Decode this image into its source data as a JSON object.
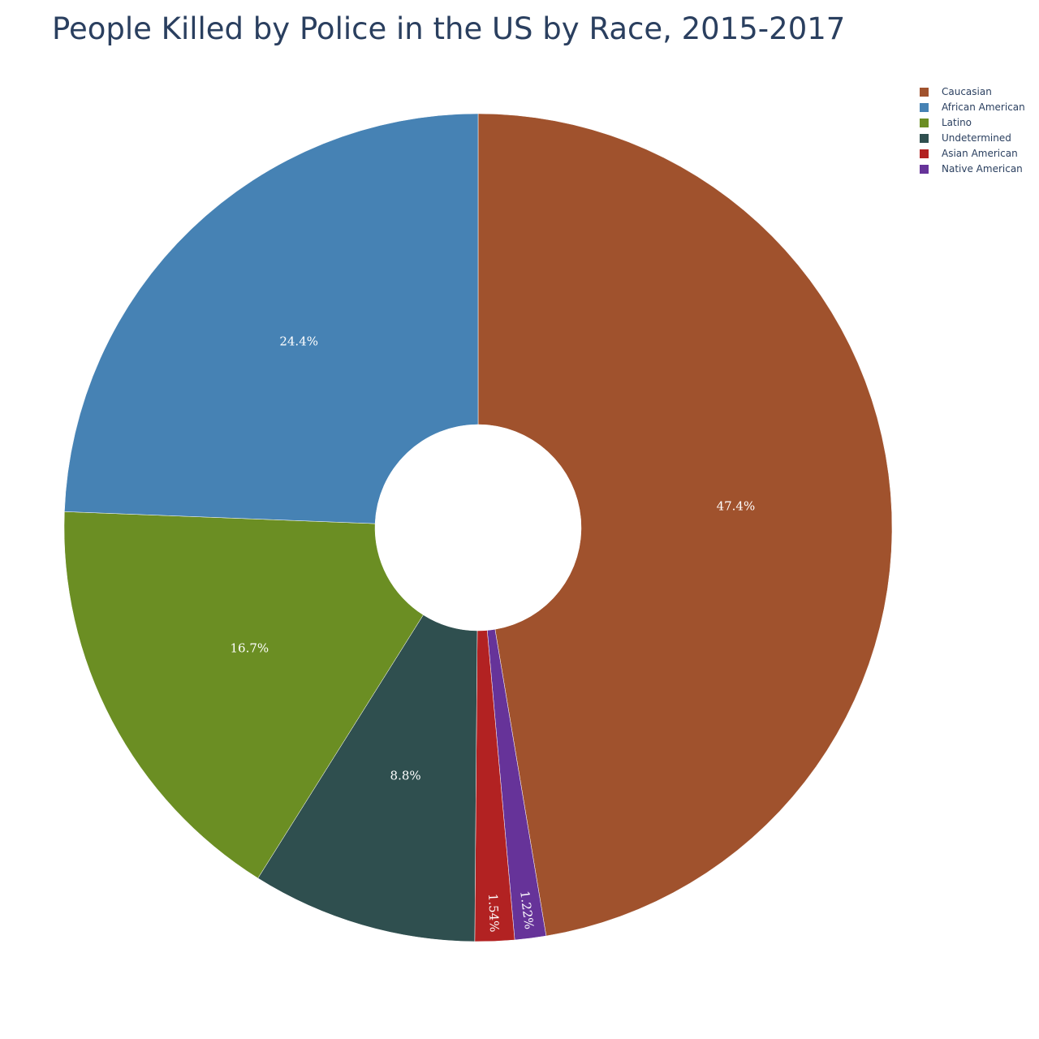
{
  "chart_data": {
    "type": "pie",
    "title": "People Killed by Police in the US by Race, 2015-2017",
    "hole": true,
    "legend_position": "top-right",
    "direction": "clockwise",
    "slices": [
      {
        "name": "Caucasian",
        "percent": 47.4,
        "label": "47.4%",
        "color": "#a0522d"
      },
      {
        "name": "Native American",
        "percent": 1.22,
        "label": "1.22%",
        "color": "#663399"
      },
      {
        "name": "Asian American",
        "percent": 1.54,
        "label": "1.54%",
        "color": "#b22222"
      },
      {
        "name": "Undetermined",
        "percent": 8.8,
        "label": "8.8%",
        "color": "#2f4f4f"
      },
      {
        "name": "Latino",
        "percent": 16.7,
        "label": "16.7%",
        "color": "#6b8e23"
      },
      {
        "name": "African American",
        "percent": 24.4,
        "label": "24.4%",
        "color": "#4682b4"
      }
    ],
    "legend": [
      {
        "name": "Caucasian",
        "color": "#a0522d"
      },
      {
        "name": "African American",
        "color": "#4682b4"
      },
      {
        "name": "Latino",
        "color": "#6b8e23"
      },
      {
        "name": "Undetermined",
        "color": "#2f4f4f"
      },
      {
        "name": "Asian American",
        "color": "#b22222"
      },
      {
        "name": "Native American",
        "color": "#663399"
      }
    ]
  }
}
